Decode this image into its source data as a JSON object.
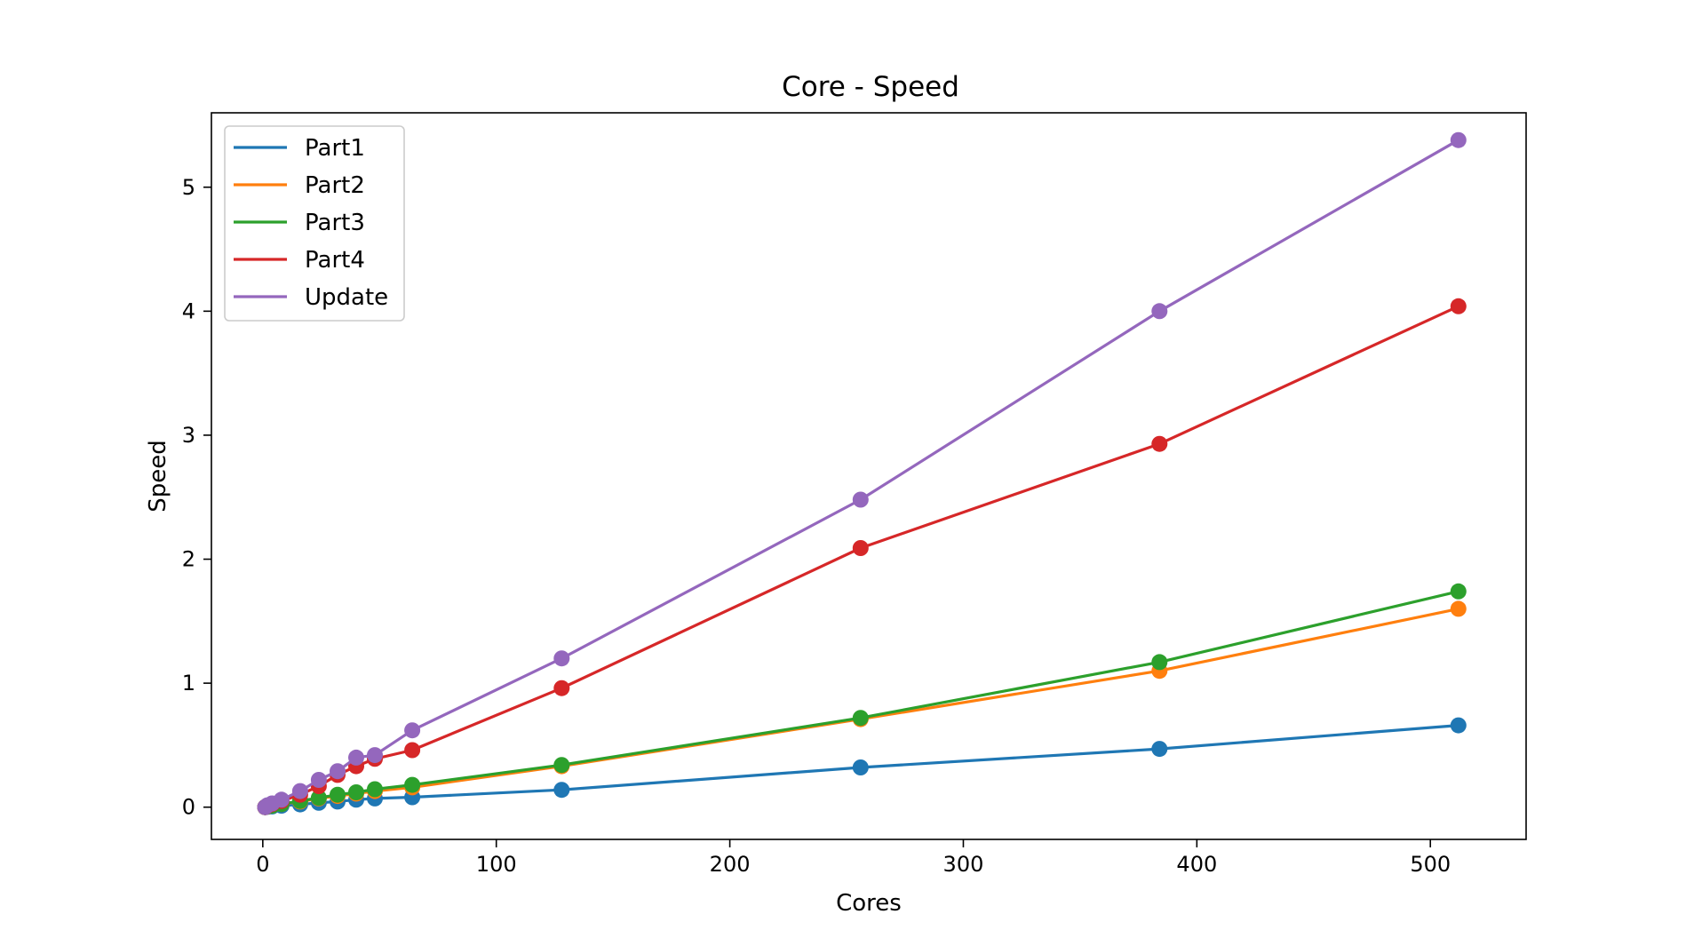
{
  "chart_data": {
    "type": "line",
    "title": "Core - Speed",
    "xlabel": "Cores",
    "ylabel": "Speed",
    "xlim": [
      -22,
      541
    ],
    "ylim": [
      -0.26,
      5.6
    ],
    "grid": false,
    "legend_position": "top-left",
    "x": [
      1,
      2,
      4,
      8,
      16,
      24,
      32,
      40,
      48,
      64,
      128,
      256,
      384,
      512
    ],
    "x_ticks": [
      0,
      100,
      200,
      300,
      400,
      500
    ],
    "y_ticks": [
      0,
      1,
      2,
      3,
      4,
      5
    ],
    "series": [
      {
        "name": "Part1",
        "color": "#1f77b4",
        "values": [
          0.0,
          0.003,
          0.006,
          0.012,
          0.022,
          0.035,
          0.045,
          0.06,
          0.07,
          0.08,
          0.14,
          0.32,
          0.47,
          0.66
        ]
      },
      {
        "name": "Part2",
        "color": "#ff7f0e",
        "values": [
          0.0,
          0.005,
          0.012,
          0.025,
          0.045,
          0.07,
          0.09,
          0.11,
          0.13,
          0.16,
          0.33,
          0.71,
          1.1,
          1.6
        ]
      },
      {
        "name": "Part3",
        "color": "#2ca02c",
        "values": [
          0.0,
          0.005,
          0.012,
          0.025,
          0.05,
          0.075,
          0.1,
          0.12,
          0.145,
          0.18,
          0.34,
          0.72,
          1.17,
          1.74
        ]
      },
      {
        "name": "Part4",
        "color": "#d62728",
        "values": [
          0.0,
          0.01,
          0.025,
          0.05,
          0.1,
          0.17,
          0.26,
          0.33,
          0.39,
          0.46,
          0.96,
          2.09,
          2.93,
          4.04
        ]
      },
      {
        "name": "Update",
        "color": "#9467bd",
        "values": [
          0.0,
          0.015,
          0.03,
          0.06,
          0.13,
          0.22,
          0.29,
          0.4,
          0.42,
          0.62,
          1.2,
          2.48,
          4.0,
          5.38
        ]
      }
    ]
  }
}
